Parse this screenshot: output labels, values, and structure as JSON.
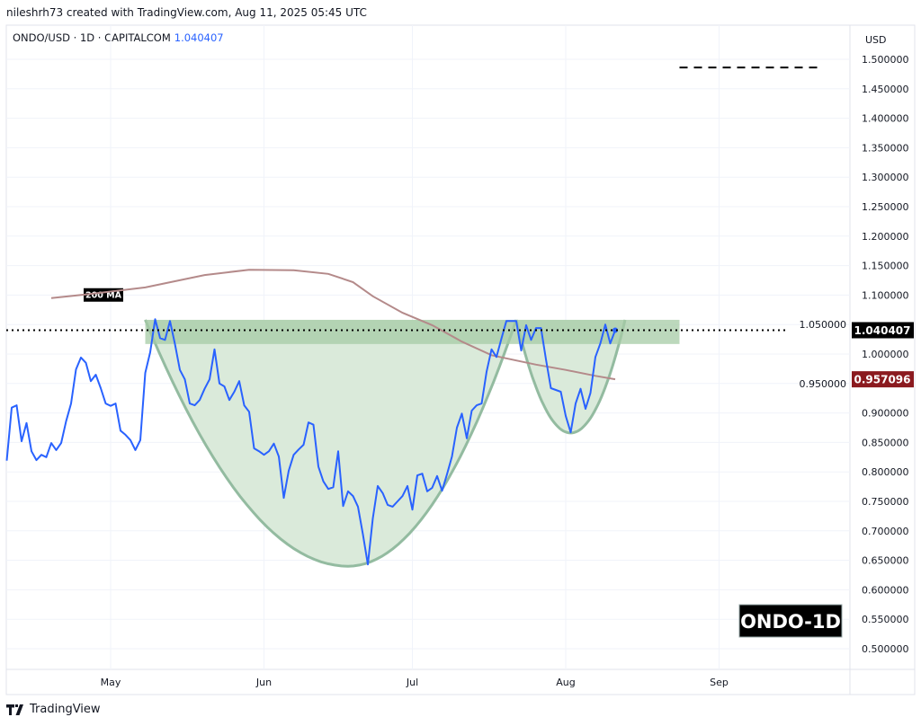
{
  "header": {
    "attribution": "nileshrh73 created with TradingView.com, Aug 11, 2025 05:45 UTC"
  },
  "legend": {
    "symbol": "ONDO/USD · 1D · CAPITALCOM",
    "last_value": "1.040407"
  },
  "footer": {
    "brand": "TradingView",
    "logo_icon": "tradingview-logo-icon"
  },
  "colors": {
    "price_line": "#2962ff",
    "ma_line": "#b48a8a",
    "zone_fill": "#a5cba5",
    "cup_fill": "#d8e9d8",
    "cup_stroke": "#93bba0",
    "last_price_bg": "#000000",
    "ma_price_bg": "#8b1a1f",
    "watermark_bg": "#000000"
  },
  "chart_data": {
    "type": "line",
    "currency": "USD",
    "ylim": [
      0.47,
      1.55
    ],
    "yticks": [
      "1.500000",
      "1.450000",
      "1.400000",
      "1.350000",
      "1.300000",
      "1.250000",
      "1.200000",
      "1.150000",
      "1.100000",
      "1.050000",
      "1.000000",
      "0.950000",
      "0.900000",
      "0.850000",
      "0.800000",
      "0.750000",
      "0.700000",
      "0.650000",
      "0.600000",
      "0.550000",
      "0.500000"
    ],
    "xticks": [
      {
        "label": "May",
        "date": "2025-05-01"
      },
      {
        "label": "Jun",
        "date": "2025-06-01"
      },
      {
        "label": "Jul",
        "date": "2025-07-01"
      },
      {
        "label": "Aug",
        "date": "2025-08-01"
      },
      {
        "label": "Sep",
        "date": "2025-09-01"
      }
    ],
    "grid": true,
    "series": [
      {
        "kind": "close",
        "dates": [
          "2025-04-10",
          "2025-04-11",
          "2025-04-12",
          "2025-04-13",
          "2025-04-14",
          "2025-04-15",
          "2025-04-16",
          "2025-04-17",
          "2025-04-18",
          "2025-04-19",
          "2025-04-20",
          "2025-04-21",
          "2025-04-22",
          "2025-04-23",
          "2025-04-24",
          "2025-04-25",
          "2025-04-26",
          "2025-04-27",
          "2025-04-28",
          "2025-04-29",
          "2025-04-30",
          "2025-05-01",
          "2025-05-02",
          "2025-05-03",
          "2025-05-04",
          "2025-05-05",
          "2025-05-06",
          "2025-05-07",
          "2025-05-08",
          "2025-05-09",
          "2025-05-10",
          "2025-05-11",
          "2025-05-12",
          "2025-05-13",
          "2025-05-14",
          "2025-05-15",
          "2025-05-16",
          "2025-05-17",
          "2025-05-18",
          "2025-05-19",
          "2025-05-20",
          "2025-05-21",
          "2025-05-22",
          "2025-05-23",
          "2025-05-24",
          "2025-05-25",
          "2025-05-26",
          "2025-05-27",
          "2025-05-28",
          "2025-05-29",
          "2025-05-30",
          "2025-05-31",
          "2025-06-01",
          "2025-06-02",
          "2025-06-03",
          "2025-06-04",
          "2025-06-05",
          "2025-06-06",
          "2025-06-07",
          "2025-06-08",
          "2025-06-09",
          "2025-06-10",
          "2025-06-11",
          "2025-06-12",
          "2025-06-13",
          "2025-06-14",
          "2025-06-15",
          "2025-06-16",
          "2025-06-17",
          "2025-06-18",
          "2025-06-19",
          "2025-06-20",
          "2025-06-21",
          "2025-06-22",
          "2025-06-23",
          "2025-06-24",
          "2025-06-25",
          "2025-06-26",
          "2025-06-27",
          "2025-06-28",
          "2025-06-29",
          "2025-06-30",
          "2025-07-01",
          "2025-07-02",
          "2025-07-03",
          "2025-07-04",
          "2025-07-05",
          "2025-07-06",
          "2025-07-07",
          "2025-07-08",
          "2025-07-09",
          "2025-07-10",
          "2025-07-11",
          "2025-07-12",
          "2025-07-13",
          "2025-07-14",
          "2025-07-15",
          "2025-07-16",
          "2025-07-17",
          "2025-07-18",
          "2025-07-19",
          "2025-07-20",
          "2025-07-21",
          "2025-07-22",
          "2025-07-23",
          "2025-07-24",
          "2025-07-25",
          "2025-07-26",
          "2025-07-27",
          "2025-07-28",
          "2025-07-29",
          "2025-07-30",
          "2025-07-31",
          "2025-08-01",
          "2025-08-02",
          "2025-08-03",
          "2025-08-04",
          "2025-08-05",
          "2025-08-06",
          "2025-08-07",
          "2025-08-08",
          "2025-08-09",
          "2025-08-10",
          "2025-08-11"
        ],
        "values": [
          0.819,
          0.909,
          0.913,
          0.852,
          0.883,
          0.835,
          0.82,
          0.829,
          0.825,
          0.849,
          0.837,
          0.849,
          0.886,
          0.916,
          0.974,
          0.994,
          0.985,
          0.954,
          0.965,
          0.942,
          0.916,
          0.912,
          0.916,
          0.87,
          0.863,
          0.854,
          0.837,
          0.854,
          0.968,
          1.003,
          1.059,
          1.027,
          1.024,
          1.056,
          1.017,
          0.973,
          0.957,
          0.916,
          0.913,
          0.922,
          0.941,
          0.957,
          1.008,
          0.95,
          0.945,
          0.922,
          0.936,
          0.954,
          0.913,
          0.902,
          0.84,
          0.835,
          0.829,
          0.835,
          0.848,
          0.826,
          0.756,
          0.802,
          0.829,
          0.838,
          0.846,
          0.884,
          0.88,
          0.809,
          0.784,
          0.771,
          0.774,
          0.835,
          0.742,
          0.767,
          0.759,
          0.741,
          0.694,
          0.643,
          0.721,
          0.776,
          0.764,
          0.744,
          0.741,
          0.75,
          0.759,
          0.776,
          0.736,
          0.794,
          0.797,
          0.767,
          0.773,
          0.793,
          0.768,
          0.796,
          0.826,
          0.875,
          0.899,
          0.857,
          0.904,
          0.913,
          0.916,
          0.97,
          1.008,
          0.995,
          1.026,
          1.056,
          1.056,
          1.056,
          1.006,
          1.049,
          1.024,
          1.044,
          1.044,
          0.991,
          0.942,
          0.939,
          0.936,
          0.895,
          0.867,
          0.916,
          0.941,
          0.907,
          0.934,
          0.995,
          1.018,
          1.05,
          1.018,
          1.040407
        ]
      },
      {
        "name": "200 MA",
        "kind": "moving-average",
        "dates": [
          "2025-04-19",
          "2025-04-27",
          "2025-05-08",
          "2025-05-20",
          "2025-05-29",
          "2025-06-07",
          "2025-06-14",
          "2025-06-19",
          "2025-06-23",
          "2025-06-29",
          "2025-07-05",
          "2025-07-11",
          "2025-07-17",
          "2025-07-22",
          "2025-07-26",
          "2025-08-01",
          "2025-08-07",
          "2025-08-11"
        ],
        "values": [
          1.095,
          1.102,
          1.113,
          1.134,
          1.143,
          1.142,
          1.136,
          1.122,
          1.098,
          1.07,
          1.049,
          1.021,
          0.998,
          0.989,
          0.982,
          0.973,
          0.963,
          0.957096
        ]
      }
    ],
    "price_labels": {
      "last": "1.040407",
      "ma": "0.957096"
    },
    "annotations": {
      "resistance_zone": {
        "from": "2025-05-08",
        "to": "2025-08-24",
        "top": 1.058,
        "bottom": 1.017
      },
      "cup": {
        "left": [
          "2025-05-08",
          1.058
        ],
        "bottom": [
          "2025-06-18",
          0.64
        ],
        "right": [
          "2025-07-22",
          1.058
        ]
      },
      "handle": {
        "left": [
          "2025-07-22",
          1.058
        ],
        "bottom": [
          "2025-08-02",
          0.866
        ],
        "right": [
          "2025-08-13",
          1.058
        ]
      },
      "target_line": {
        "from": "2025-08-24",
        "to": "2025-09-21",
        "value": 1.486
      },
      "ma_label": "200 MA",
      "watermark": "ONDO-1D"
    }
  }
}
